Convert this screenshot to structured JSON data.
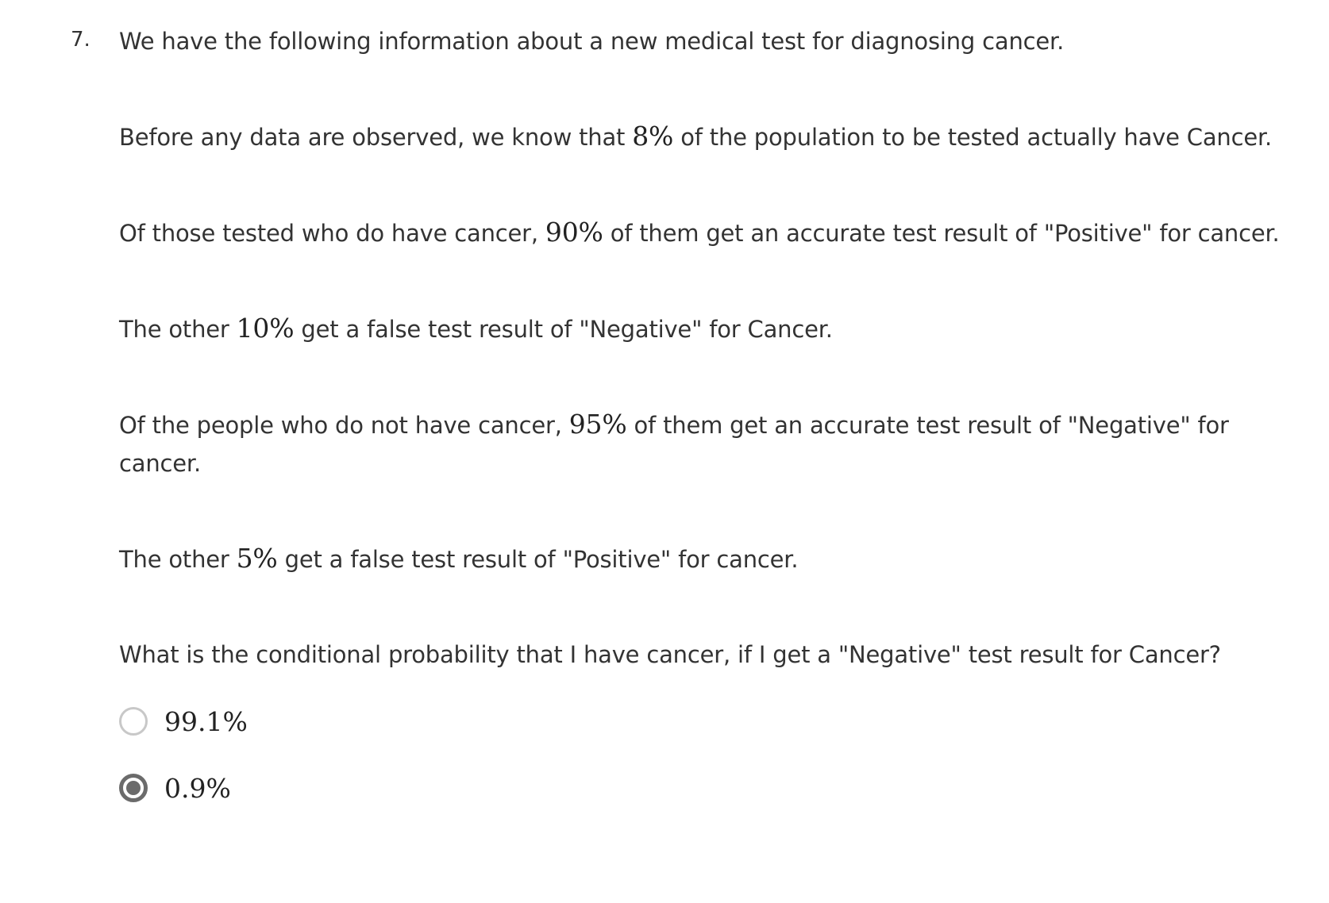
{
  "question": {
    "number": "7.",
    "intro": "We have the following information about a new medical test for diagnosing cancer.",
    "prior": {
      "before": "Before any data are observed, we know that ",
      "value": "8%",
      "after": " of the population to be tested actually have Cancer."
    },
    "sensitivity": {
      "before": "Of those tested who do have cancer, ",
      "value": "90%",
      "after": " of them get an accurate test result of \"Positive\" for cancer."
    },
    "false_negative": {
      "before": "The other ",
      "value": "10%",
      "after": " get a false test result of \"Negative\" for Cancer."
    },
    "specificity": {
      "before": "Of the people who do not have cancer, ",
      "value": "95%",
      "after": " of them get an accurate test result of \"Negative\" for cancer."
    },
    "false_positive": {
      "before": "The other ",
      "value": "5%",
      "after": " get a false test result of \"Positive\" for cancer."
    },
    "ask": "What is the conditional probability that I have cancer, if I get a \"Negative\" test result for Cancer?",
    "options": [
      {
        "label": "99.1%",
        "selected": false
      },
      {
        "label": "0.9%",
        "selected": true
      }
    ]
  }
}
